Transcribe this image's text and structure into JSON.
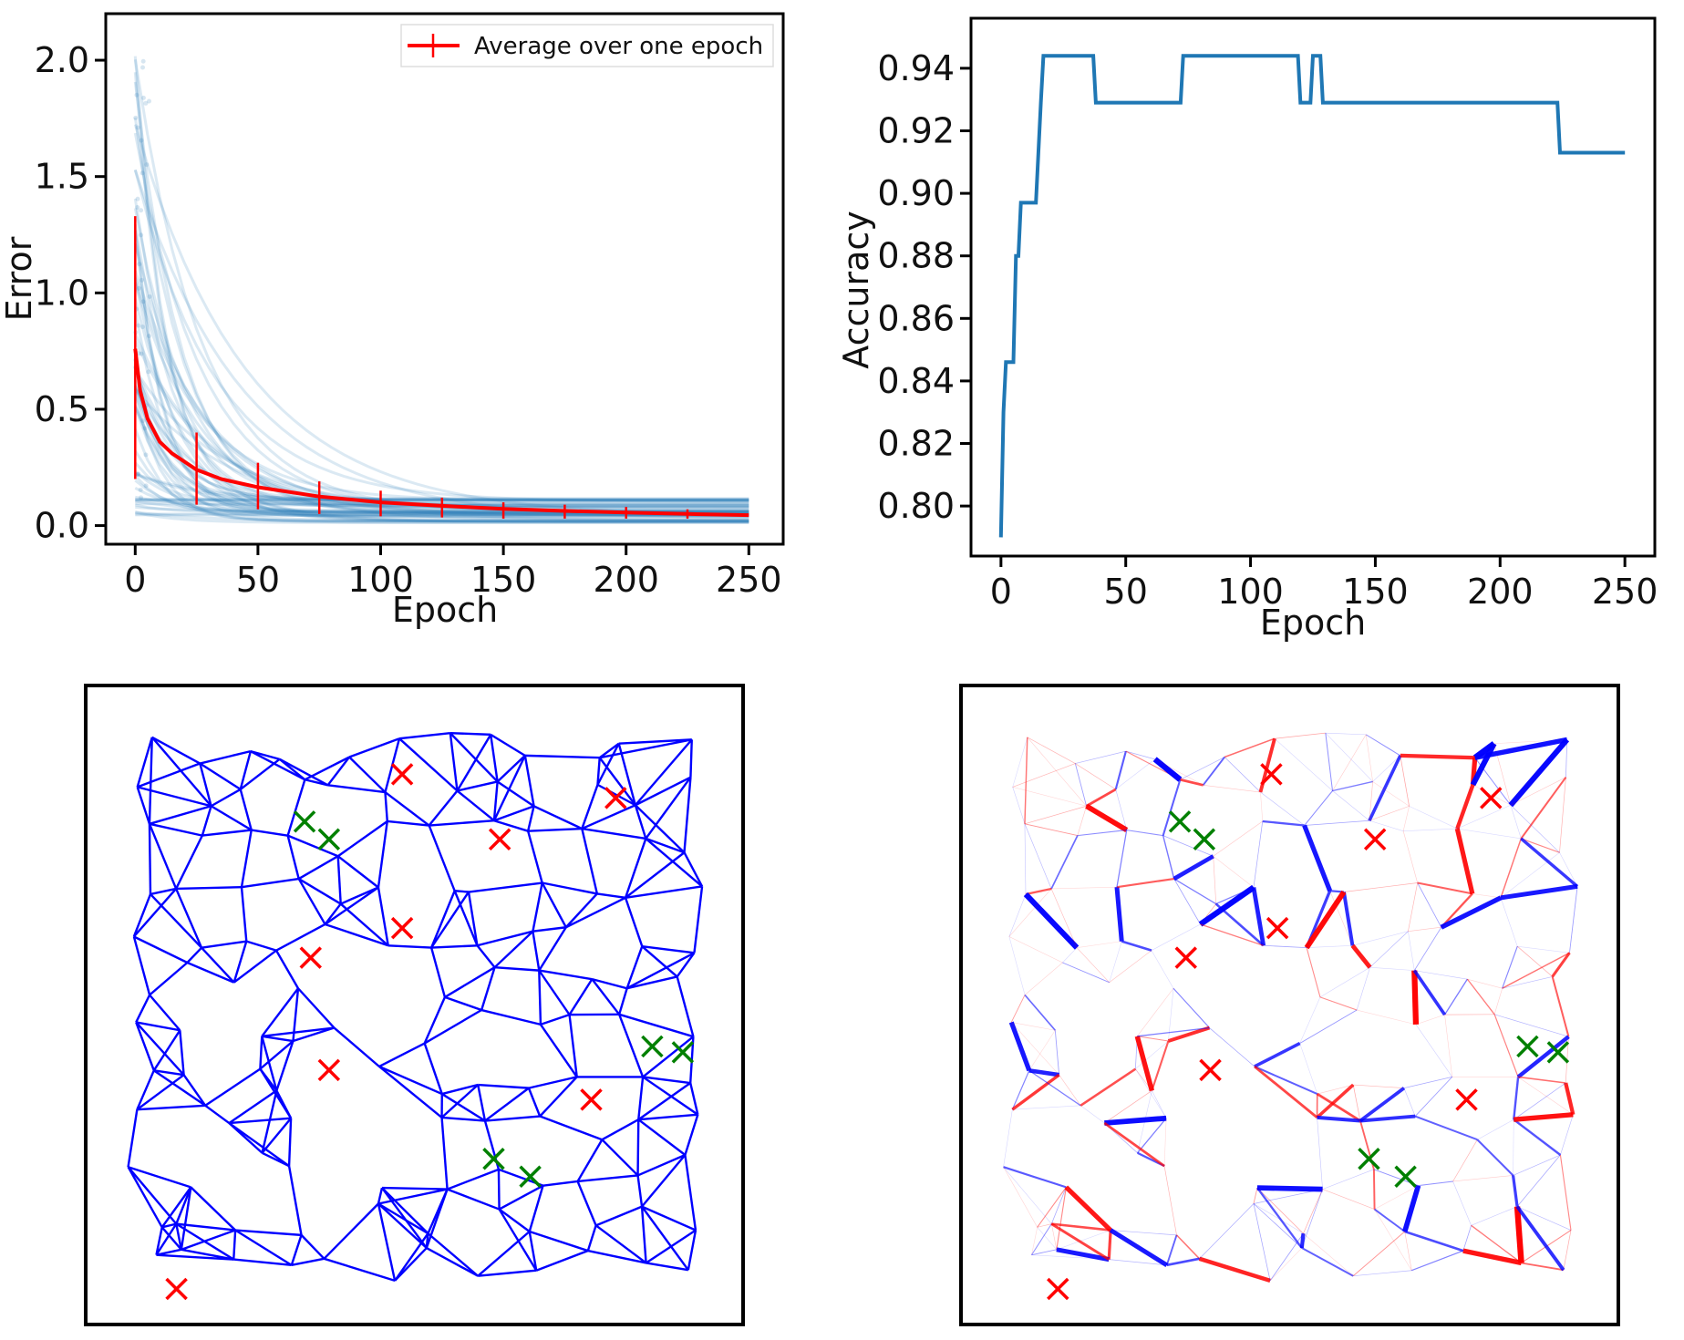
{
  "chart_data": [
    {
      "type": "line",
      "title": "",
      "xlabel": "Epoch",
      "ylabel": "Error",
      "xlim": [
        -12,
        264
      ],
      "ylim": [
        -0.08,
        2.2
      ],
      "xticks": [
        0,
        50,
        100,
        150,
        200,
        250
      ],
      "yticks": [
        0.0,
        0.5,
        1.0,
        1.5,
        2.0
      ],
      "xtick_labels": [
        "0",
        "50",
        "100",
        "150",
        "200",
        "250"
      ],
      "ytick_labels": [
        "0.0",
        "0.5",
        "1.0",
        "1.5",
        "2.0"
      ],
      "legend": {
        "label": "Average over one epoch",
        "position": "top-right"
      },
      "series": [
        {
          "name": "Average over one epoch",
          "color": "#ff0000",
          "x": [
            0,
            2,
            5,
            10,
            15,
            25,
            35,
            50,
            75,
            100,
            125,
            150,
            175,
            200,
            225,
            250
          ],
          "y": [
            0.76,
            0.58,
            0.46,
            0.36,
            0.31,
            0.24,
            0.2,
            0.165,
            0.125,
            0.1,
            0.085,
            0.072,
            0.063,
            0.056,
            0.05,
            0.045
          ],
          "error_x": [
            0,
            25,
            50,
            75,
            100,
            125,
            150,
            175,
            200,
            225
          ],
          "error_y": [
            0.76,
            0.24,
            0.165,
            0.125,
            0.1,
            0.085,
            0.072,
            0.063,
            0.056,
            0.05
          ],
          "error_low": [
            0.2,
            0.09,
            0.07,
            0.05,
            0.04,
            0.035,
            0.03,
            0.03,
            0.03,
            0.03
          ],
          "error_high": [
            1.33,
            0.4,
            0.27,
            0.19,
            0.15,
            0.12,
            0.1,
            0.09,
            0.08,
            0.07
          ]
        },
        {
          "name": "Per-sample error",
          "color": "#1f77b4",
          "decay": {
            "start_min": 0.02,
            "start_max": 2.05,
            "end_min": 0.01,
            "end_max": 0.12,
            "rate_min": 0.02,
            "rate_max": 0.09,
            "count": 60
          }
        }
      ]
    },
    {
      "type": "line",
      "title": "",
      "xlabel": "Epoch",
      "ylabel": "Accuracy",
      "xlim": [
        -12,
        262
      ],
      "ylim": [
        0.784,
        0.956
      ],
      "xticks": [
        0,
        50,
        100,
        150,
        200,
        250
      ],
      "yticks": [
        0.8,
        0.82,
        0.84,
        0.86,
        0.88,
        0.9,
        0.92,
        0.94
      ],
      "xtick_labels": [
        "0",
        "50",
        "100",
        "150",
        "200",
        "250"
      ],
      "ytick_labels": [
        "0.80",
        "0.82",
        "0.84",
        "0.86",
        "0.88",
        "0.90",
        "0.92",
        "0.94"
      ],
      "series": [
        {
          "name": "Accuracy",
          "color": "#1f77b4",
          "step_x": [
            0,
            1,
            2,
            5,
            6,
            7,
            8,
            14,
            15,
            16,
            17,
            37,
            38,
            72,
            73,
            119,
            120,
            124,
            125,
            128,
            129,
            223,
            224,
            250
          ],
          "step_y": [
            0.79,
            0.83,
            0.846,
            0.846,
            0.88,
            0.88,
            0.897,
            0.897,
            0.913,
            0.929,
            0.944,
            0.944,
            0.929,
            0.929,
            0.944,
            0.944,
            0.929,
            0.929,
            0.944,
            0.944,
            0.929,
            0.929,
            0.913,
            0.913
          ]
        }
      ]
    },
    {
      "type": "network",
      "title": "",
      "edge_color": "#0000ff",
      "red_marker_color": "#ff0000",
      "green_marker_color": "#008000",
      "red_markers": [
        [
          0.48,
          0.11
        ],
        [
          0.83,
          0.15
        ],
        [
          0.64,
          0.22
        ],
        [
          0.48,
          0.37
        ],
        [
          0.33,
          0.42
        ],
        [
          0.36,
          0.61
        ],
        [
          0.79,
          0.66
        ],
        [
          0.11,
          0.98
        ]
      ],
      "green_markers": [
        [
          0.32,
          0.19
        ],
        [
          0.36,
          0.22
        ],
        [
          0.89,
          0.57
        ],
        [
          0.94,
          0.58
        ],
        [
          0.63,
          0.76
        ],
        [
          0.69,
          0.79
        ]
      ]
    },
    {
      "type": "network",
      "title": "",
      "edge_colors": [
        "#0000ff",
        "#ff0000"
      ],
      "red_markers": [
        [
          0.47,
          0.11
        ],
        [
          0.83,
          0.15
        ],
        [
          0.64,
          0.22
        ],
        [
          0.48,
          0.37
        ],
        [
          0.33,
          0.42
        ],
        [
          0.37,
          0.61
        ],
        [
          0.79,
          0.66
        ],
        [
          0.12,
          0.98
        ]
      ],
      "green_markers": [
        [
          0.32,
          0.19
        ],
        [
          0.36,
          0.22
        ],
        [
          0.89,
          0.57
        ],
        [
          0.94,
          0.58
        ],
        [
          0.63,
          0.76
        ],
        [
          0.69,
          0.79
        ]
      ]
    }
  ]
}
